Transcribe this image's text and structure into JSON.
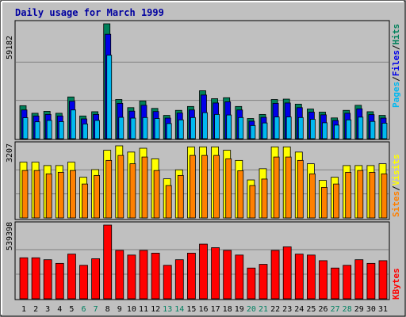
{
  "chart_data": [
    {
      "type": "bar",
      "title": "Daily usage for March 1999",
      "panel": "hits-files-pages",
      "ymax_label": "59182",
      "legend": [
        {
          "label": "Pages",
          "color": "#00b8f0"
        },
        {
          "label": "Files",
          "color": "#0000e8"
        },
        {
          "label": "Hits",
          "color": "#00805a"
        }
      ],
      "legend_separator": "/",
      "x": [
        "1",
        "2",
        "3",
        "4",
        "5",
        "6",
        "7",
        "8",
        "9",
        "10",
        "11",
        "12",
        "13",
        "14",
        "15",
        "16",
        "17",
        "18",
        "19",
        "20",
        "21",
        "22",
        "23",
        "24",
        "25",
        "26",
        "27",
        "28",
        "29",
        "30",
        "31"
      ],
      "weekend_days": [
        "6",
        "7",
        "13",
        "14",
        "20",
        "21",
        "27",
        "28"
      ],
      "series": [
        {
          "name": "Hits",
          "color": "#00805a",
          "values": [
            17000,
            13100,
            14100,
            13100,
            21500,
            11700,
            13900,
            59182,
            20200,
            16000,
            19400,
            15600,
            12000,
            14600,
            16600,
            24700,
            20600,
            21100,
            16600,
            10400,
            12500,
            20200,
            20400,
            17800,
            15300,
            13700,
            10700,
            14600,
            17200,
            13900,
            12000
          ]
        },
        {
          "name": "Files",
          "color": "#0000e8",
          "values": [
            14800,
            11700,
            12500,
            11700,
            19300,
            10200,
            12500,
            53800,
            18200,
            14200,
            17200,
            14000,
            10600,
            13200,
            14800,
            22500,
            18400,
            19000,
            14800,
            9000,
            11000,
            18200,
            18400,
            16000,
            13700,
            12300,
            9400,
            13100,
            15400,
            12400,
            10600
          ]
        },
        {
          "name": "Pages",
          "color": "#00b8f0",
          "values": [
            10800,
            8700,
            9400,
            8800,
            14800,
            7600,
            9400,
            43000,
            11000,
            10600,
            10900,
            10400,
            7800,
            9700,
            10900,
            13400,
            12500,
            12200,
            10900,
            6800,
            8100,
            11200,
            11200,
            10900,
            10000,
            8200,
            7000,
            9700,
            11100,
            8900,
            8000
          ]
        }
      ]
    },
    {
      "type": "bar",
      "panel": "sites-visits",
      "ymax_label": "3207",
      "legend": [
        {
          "label": "Sites",
          "color": "#ff8000"
        },
        {
          "label": "Visits",
          "color": "#ffff00"
        }
      ],
      "legend_separator": "/",
      "x": [
        "1",
        "2",
        "3",
        "4",
        "5",
        "6",
        "7",
        "8",
        "9",
        "10",
        "11",
        "12",
        "13",
        "14",
        "15",
        "16",
        "17",
        "18",
        "19",
        "20",
        "21",
        "22",
        "23",
        "24",
        "25",
        "26",
        "27",
        "28",
        "29",
        "30",
        "31"
      ],
      "series": [
        {
          "name": "Visits",
          "color": "#ffff00",
          "values": [
            2480,
            2480,
            2330,
            2330,
            2480,
            1810,
            2150,
            3010,
            3207,
            2930,
            3100,
            2630,
            1740,
            2140,
            3160,
            3160,
            3160,
            3010,
            2560,
            1690,
            2190,
            3160,
            3160,
            2930,
            2410,
            1670,
            1810,
            2330,
            2330,
            2330,
            2410
          ]
        },
        {
          "name": "Sites",
          "color": "#ff8000",
          "values": [
            2110,
            2110,
            1960,
            2030,
            2110,
            1510,
            1890,
            2560,
            2780,
            2410,
            2710,
            2110,
            1440,
            1890,
            2780,
            2780,
            2780,
            2630,
            2100,
            1440,
            1730,
            2710,
            2710,
            2560,
            1960,
            1360,
            1510,
            2030,
            2110,
            2030,
            1960
          ]
        }
      ]
    },
    {
      "type": "bar",
      "panel": "kbytes",
      "ymax_label": "539398",
      "legend": [
        {
          "label": "KBytes",
          "color": "#ff0000"
        }
      ],
      "x": [
        "1",
        "2",
        "3",
        "4",
        "5",
        "6",
        "7",
        "8",
        "9",
        "10",
        "11",
        "12",
        "13",
        "14",
        "15",
        "16",
        "17",
        "18",
        "19",
        "20",
        "21",
        "22",
        "23",
        "24",
        "25",
        "26",
        "27",
        "28",
        "29",
        "30",
        "31"
      ],
      "series": [
        {
          "name": "KBytes",
          "color": "#ff0000",
          "values": [
            300000,
            300000,
            286000,
            259000,
            327000,
            245000,
            293000,
            539398,
            354000,
            320000,
            354000,
            334000,
            245000,
            286000,
            334000,
            400000,
            374000,
            354000,
            320000,
            225000,
            252000,
            354000,
            380000,
            327000,
            320000,
            279000,
            225000,
            245000,
            286000,
            259000,
            279000
          ]
        }
      ]
    }
  ]
}
